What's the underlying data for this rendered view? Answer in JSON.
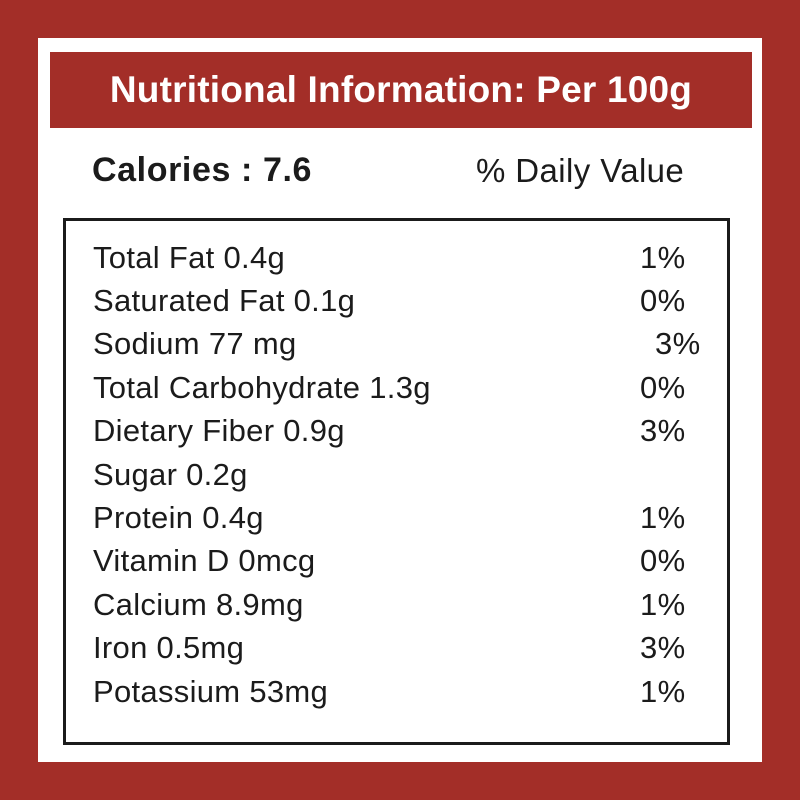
{
  "colors": {
    "brand_red": "#A32E28",
    "ink": "#1B1B1B",
    "surface": "#FFFFFF"
  },
  "header": {
    "title": "Nutritional Information: Per 100g"
  },
  "summary": {
    "calories": "Calories : 7.6",
    "daily_value_heading": "% Daily Value"
  },
  "nutrients": {
    "rows": [
      {
        "label": "Total Fat 0.4g",
        "pct": "1%"
      },
      {
        "label": "Saturated Fat 0.1g",
        "pct": "0%"
      },
      {
        "label": "Sodium 77 mg",
        "pct": "3%",
        "pct_indent": true
      },
      {
        "label": "Total Carbohydrate 1.3g",
        "pct": "0%"
      },
      {
        "label": "Dietary Fiber 0.9g",
        "pct": "3%"
      },
      {
        "label": "Sugar 0.2g",
        "pct": ""
      },
      {
        "label": "Protein 0.4g",
        "pct": "1%"
      },
      {
        "label": "Vitamin D 0mcg",
        "pct": "0%"
      },
      {
        "label": "Calcium 8.9mg",
        "pct": "1%"
      },
      {
        "label": "Iron 0.5mg",
        "pct": "3%"
      },
      {
        "label": "Potassium 53mg",
        "pct": "1%"
      }
    ]
  }
}
